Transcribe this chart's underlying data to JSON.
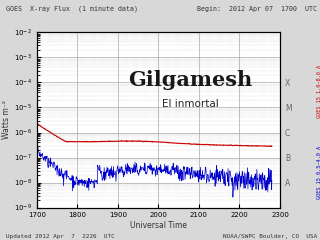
{
  "title_left": "GOES  X-ray Flux  (1 minute data)",
  "title_right": "Begin:  2012 Apr 07  1700  UTC",
  "xlabel": "Universal Time",
  "ylabel": "Watts m⁻²",
  "footer_left": "Updated 2012 Apr  7  2226  UTC",
  "footer_right": "NOAA/SWPC Boulder, CO  USA",
  "right_label_red": "GOES 15 1.0–8.0 A",
  "right_label_blue": "GOES 15 0.5–4.0 A",
  "flare_labels": [
    "X",
    "M",
    "C",
    "B",
    "A"
  ],
  "flare_levels": [
    0.0001,
    1e-05,
    1e-06,
    1e-07,
    1e-08
  ],
  "watermark_line1": "Gilgamesh",
  "watermark_line2": "El inmortal",
  "xmin": 1700,
  "xmax": 2300,
  "xticks": [
    1700,
    1800,
    1900,
    2000,
    2100,
    2200,
    2300
  ],
  "ymin": 1e-09,
  "ymax": 0.01,
  "bg_color": "#d8d8d8",
  "plot_bg_color": "#ffffff",
  "red_color": "#cc0000",
  "blue_color": "#0000cc",
  "grid_color": "#aaaaaa",
  "title_color": "#333333",
  "footer_color": "#333333"
}
